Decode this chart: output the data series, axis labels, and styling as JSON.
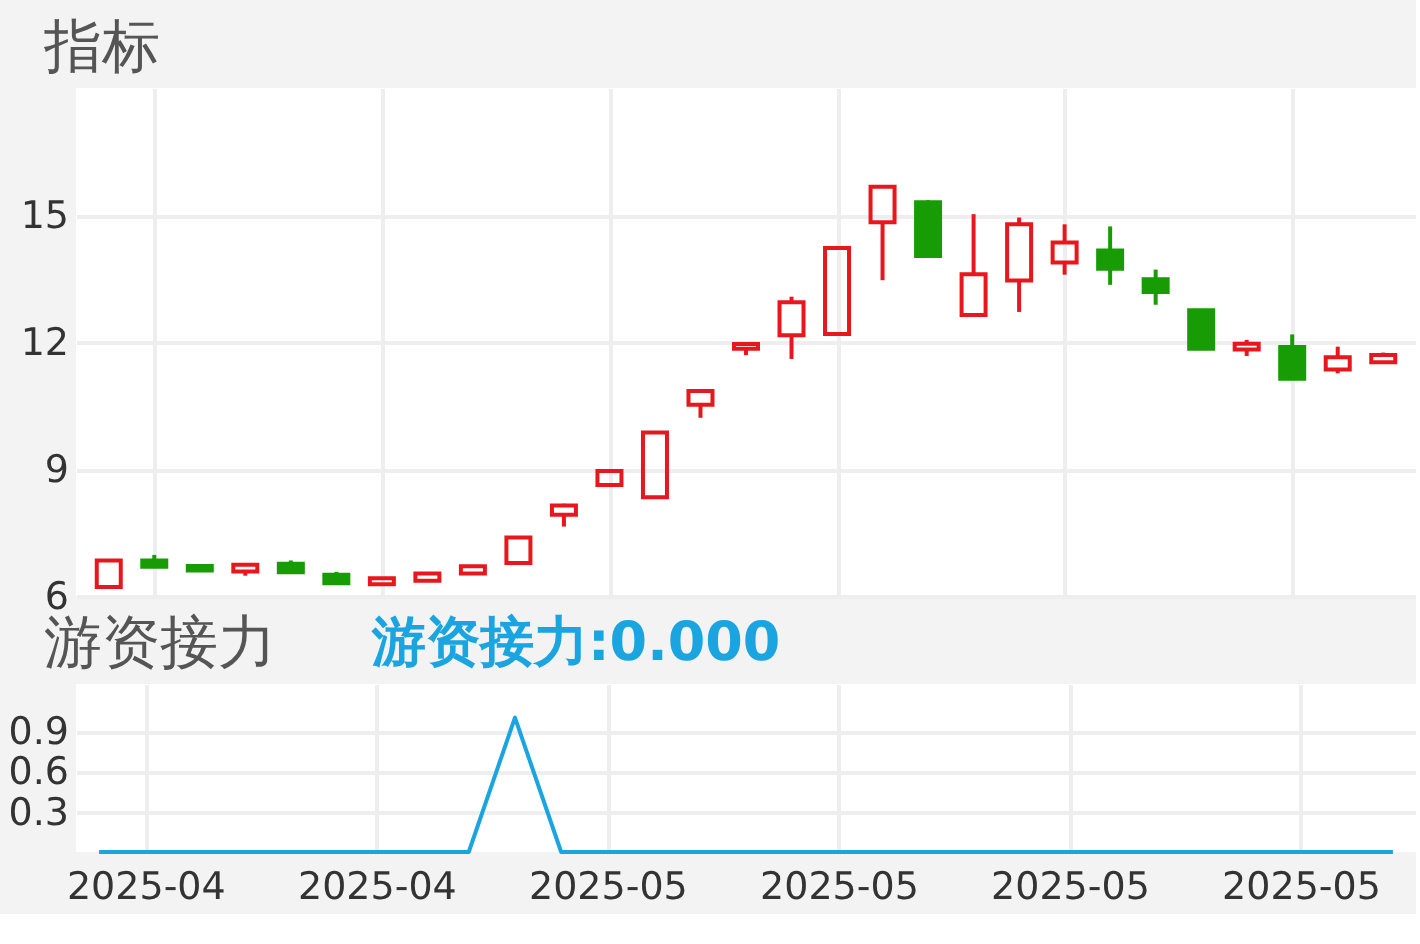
{
  "chart_data": [
    {
      "type": "candlestick",
      "title": "指标",
      "categories": [
        null,
        "2025-04",
        null,
        null,
        null,
        null,
        "2025-04",
        null,
        null,
        null,
        null,
        "2025-05",
        null,
        null,
        null,
        null,
        "2025-05",
        null,
        null,
        null,
        null,
        "2025-05",
        null,
        null,
        null,
        null,
        "2025-05",
        null,
        null
      ],
      "ohlc": [
        [
          6.21,
          6.84,
          6.21,
          6.84
        ],
        [
          6.84,
          6.97,
          6.69,
          6.69
        ],
        [
          6.71,
          6.75,
          6.57,
          6.6
        ],
        [
          6.58,
          6.76,
          6.48,
          6.74
        ],
        [
          6.76,
          6.84,
          6.54,
          6.56
        ],
        [
          6.5,
          6.57,
          6.3,
          6.3
        ],
        [
          6.28,
          6.43,
          6.27,
          6.42
        ],
        [
          6.36,
          6.55,
          6.35,
          6.53
        ],
        [
          6.53,
          6.72,
          6.52,
          6.7
        ],
        [
          6.78,
          7.38,
          6.78,
          7.38
        ],
        [
          7.92,
          8.18,
          7.64,
          8.14
        ],
        [
          8.62,
          8.95,
          8.62,
          8.95
        ],
        [
          8.33,
          9.86,
          8.33,
          9.86
        ],
        [
          10.52,
          10.86,
          10.21,
          10.84
        ],
        [
          11.84,
          11.97,
          11.69,
          11.95
        ],
        [
          12.16,
          13.07,
          11.6,
          12.94
        ],
        [
          12.19,
          14.25,
          12.19,
          14.22
        ],
        [
          14.83,
          15.7,
          13.46,
          15.67
        ],
        [
          15.3,
          15.35,
          14.03,
          14.03
        ],
        [
          12.64,
          15.02,
          12.64,
          13.6
        ],
        [
          13.45,
          14.94,
          12.71,
          14.78
        ],
        [
          13.88,
          14.78,
          13.59,
          14.35
        ],
        [
          14.16,
          14.73,
          13.35,
          13.73
        ],
        [
          13.48,
          13.71,
          12.88,
          13.18
        ],
        [
          12.75,
          12.78,
          11.84,
          11.84
        ],
        [
          11.82,
          12.05,
          11.67,
          11.96
        ],
        [
          11.88,
          12.18,
          11.13,
          11.13
        ],
        [
          11.35,
          11.89,
          11.26,
          11.64
        ],
        [
          11.52,
          11.75,
          11.5,
          11.69
        ]
      ],
      "colors": [
        "#e8161d",
        "#189c05",
        "#189c05",
        "#e8161d",
        "#189c05",
        "#189c05",
        "#e8161d",
        "#e8161d",
        "#e8161d",
        "#e8161d",
        "#e8161d",
        "#e8161d",
        "#e8161d",
        "#e8161d",
        "#e8161d",
        "#e8161d",
        "#e8161d",
        "#e8161d",
        "#189c05",
        "#e8161d",
        "#e8161d",
        "#e8161d",
        "#189c05",
        "#189c05",
        "#189c05",
        "#e8161d",
        "#189c05",
        "#e8161d",
        "#e8161d"
      ],
      "ylim": [
        6,
        18
      ],
      "yticks": [
        6,
        9,
        12,
        15
      ],
      "grid": true,
      "tick_labels": "y"
    },
    {
      "type": "line",
      "title": "游资接力",
      "subtitle": "游资接力:0.000",
      "categories": [
        null,
        "2025-04",
        null,
        null,
        null,
        null,
        "2025-04",
        null,
        null,
        null,
        null,
        "2025-05",
        null,
        null,
        null,
        null,
        "2025-05",
        null,
        null,
        null,
        null,
        "2025-05",
        null,
        null,
        null,
        null,
        "2025-05",
        null,
        null
      ],
      "series": [
        {
          "color": "#1aa5e0",
          "values": [
            0,
            0,
            0,
            0,
            0,
            0,
            0,
            0,
            0,
            1.0,
            0,
            0,
            0,
            0,
            0,
            0,
            0,
            0,
            0,
            0,
            0,
            0,
            0,
            0,
            0,
            0,
            0,
            0,
            0
          ]
        }
      ],
      "ylim": [
        0,
        1.25
      ],
      "yticks": [
        0.3,
        0.6,
        0.9
      ],
      "grid": true
    }
  ]
}
